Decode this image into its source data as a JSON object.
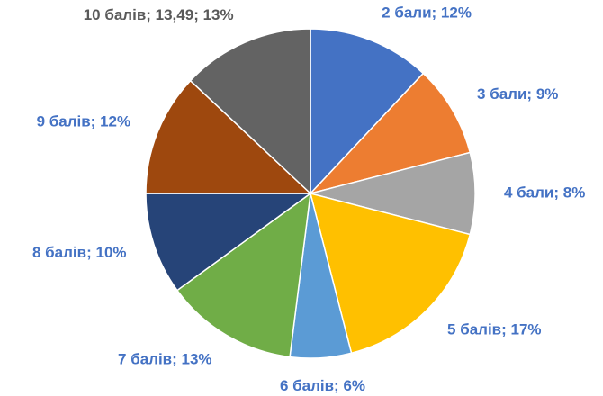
{
  "chart_data": {
    "type": "pie",
    "values": [
      12,
      9,
      8,
      17,
      6,
      13,
      10,
      12,
      13
    ],
    "value_labels": [
      "2 бали; 12%",
      "3 бали; 9%",
      "4 бали; 8%",
      "5 балів; 17%",
      "6 балів; 6%",
      "7 балів; 13%",
      "8 балів; 10%",
      "9 балів; 12%",
      "10 балів; 13,49; 13%"
    ],
    "colors": [
      "#4472c4",
      "#ed7d31",
      "#a5a5a5",
      "#ffc000",
      "#5b9bd5",
      "#70ad47",
      "#264478",
      "#9e480e",
      "#636363"
    ],
    "label_colors": [
      "#4472c4",
      "#4472c4",
      "#4472c4",
      "#4472c4",
      "#4472c4",
      "#4472c4",
      "#4472c4",
      "#4472c4",
      "#595959"
    ]
  }
}
